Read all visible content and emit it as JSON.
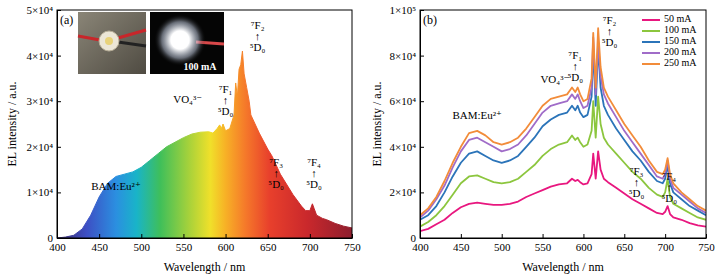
{
  "chart_data": [
    {
      "type": "area",
      "panel_label": "(a)",
      "inset_label": "100 mA",
      "x_label": "Wavelength / nm",
      "y_label": "EL intensity / a.u.",
      "xlim": [
        400,
        750
      ],
      "ylim": [
        0,
        50000
      ],
      "xticks": [
        400,
        450,
        500,
        550,
        600,
        650,
        700,
        750
      ],
      "yticks": [
        0,
        {
          "value": 10000,
          "label": "1×10⁴"
        },
        {
          "value": 20000,
          "label": "2×10⁴"
        },
        {
          "value": 30000,
          "label": "3×10⁴"
        },
        {
          "value": 40000,
          "label": "4×10⁴"
        },
        {
          "value": 50000,
          "label": "5×10⁴"
        }
      ],
      "x": [
        400,
        410,
        420,
        430,
        440,
        450,
        460,
        470,
        480,
        490,
        500,
        510,
        520,
        530,
        540,
        550,
        560,
        570,
        580,
        585,
        590,
        593,
        595,
        597,
        600,
        605,
        610,
        612,
        614,
        616,
        618,
        620,
        622,
        625,
        628,
        630,
        635,
        640,
        650,
        655,
        660,
        665,
        670,
        680,
        690,
        695,
        700,
        703,
        705,
        708,
        715,
        720,
        730,
        740,
        750
      ],
      "values": [
        0,
        200,
        600,
        2000,
        5000,
        9000,
        12000,
        13500,
        14000,
        14500,
        15500,
        17000,
        18500,
        20000,
        21000,
        22000,
        22800,
        23200,
        23300,
        23000,
        24000,
        24800,
        24000,
        25000,
        23500,
        24000,
        27000,
        34000,
        31000,
        37000,
        38000,
        41000,
        36000,
        33000,
        30000,
        27000,
        25000,
        23000,
        19500,
        18000,
        16000,
        14000,
        12500,
        9500,
        7000,
        6000,
        6000,
        7500,
        6500,
        5000,
        4300,
        4000,
        3200,
        2600,
        2200
      ],
      "annotations": [
        {
          "text": [
            "BAM:Eu²⁺"
          ],
          "x": 470,
          "y": 10500
        },
        {
          "text": [
            "VO₄³⁻"
          ],
          "x": 555,
          "y": 29500
        },
        {
          "text": [
            "⁷F₁",
            "↑",
            "⁵D₀"
          ],
          "x": 600,
          "y": 27000
        },
        {
          "text": [
            "⁷F₂",
            "↑",
            "⁵D₀"
          ],
          "x": 638,
          "y": 41000
        },
        {
          "text": [
            "⁷F₃",
            "↑",
            "⁵D₀"
          ],
          "x": 660,
          "y": 11000
        },
        {
          "text": [
            "⁷F₄",
            "↑",
            "⁵D₀"
          ],
          "x": 705,
          "y": 11000
        }
      ]
    },
    {
      "type": "line",
      "panel_label": "(b)",
      "x_label": "Wavelength / nm",
      "y_label": "EL intensity / a.u.",
      "legend": "upper right",
      "xlim": [
        400,
        750
      ],
      "ylim": [
        0,
        100000
      ],
      "xticks": [
        400,
        450,
        500,
        550,
        600,
        650,
        700,
        750
      ],
      "yticks": [
        0,
        {
          "value": 20000,
          "label": "2×10⁴"
        },
        {
          "value": 40000,
          "label": "4×10⁴"
        },
        {
          "value": 60000,
          "label": "6×10⁴"
        },
        {
          "value": 80000,
          "label": "8×10⁴"
        },
        {
          "value": 100000,
          "label": "1×10⁵"
        }
      ],
      "x": [
        400,
        410,
        420,
        430,
        440,
        450,
        460,
        470,
        480,
        490,
        500,
        510,
        520,
        530,
        540,
        550,
        560,
        570,
        580,
        586,
        590,
        593,
        596,
        600,
        605,
        610,
        612,
        615,
        618,
        621,
        625,
        630,
        640,
        650,
        660,
        670,
        680,
        690,
        697,
        700,
        703,
        706,
        710,
        720,
        730,
        740,
        750
      ],
      "series": [
        {
          "name": "50 mA",
          "color": "#e8177f",
          "values": [
            3000,
            4000,
            6000,
            8000,
            11000,
            13500,
            15000,
            15500,
            15000,
            14500,
            14500,
            15000,
            16000,
            18000,
            19500,
            21000,
            22500,
            23500,
            24000,
            26000,
            25000,
            25500,
            24500,
            23500,
            24000,
            28000,
            37000,
            26000,
            38000,
            30000,
            26000,
            24500,
            22000,
            19500,
            17000,
            15000,
            13000,
            11000,
            10500,
            11500,
            14000,
            10500,
            9000,
            8000,
            6500,
            5500,
            5000
          ]
        },
        {
          "name": "100 mA",
          "color": "#8cc63e",
          "values": [
            5000,
            7000,
            10000,
            14000,
            19000,
            24000,
            27000,
            27500,
            26000,
            24500,
            24000,
            24500,
            26000,
            29000,
            32000,
            36000,
            39000,
            41000,
            42000,
            45000,
            43000,
            44000,
            42000,
            40000,
            41000,
            47000,
            60000,
            44000,
            62000,
            50000,
            44000,
            41000,
            37000,
            33000,
            29000,
            26000,
            22000,
            19000,
            18000,
            20000,
            26000,
            18000,
            15000,
            13000,
            11000,
            9000,
            8000
          ]
        },
        {
          "name": "150 mA",
          "color": "#2b74b9",
          "values": [
            8000,
            10000,
            14000,
            20000,
            27000,
            33000,
            37000,
            38000,
            36000,
            34000,
            33000,
            34000,
            36000,
            40000,
            44000,
            49000,
            52000,
            54000,
            55000,
            58000,
            56000,
            58000,
            55000,
            53000,
            54000,
            62000,
            83000,
            58000,
            84000,
            66000,
            58000,
            54000,
            48000,
            43000,
            38000,
            34000,
            29000,
            25000,
            24000,
            26000,
            32000,
            24000,
            20000,
            17000,
            14000,
            12000,
            10000
          ]
        },
        {
          "name": "200 mA",
          "color": "#a06cc8",
          "values": [
            9000,
            12000,
            17000,
            23000,
            31000,
            38000,
            43000,
            44000,
            42000,
            40000,
            38000,
            39000,
            41000,
            45000,
            50000,
            55000,
            58000,
            59000,
            60000,
            63000,
            61000,
            63000,
            60000,
            57000,
            58000,
            66000,
            88000,
            63000,
            86000,
            71000,
            63000,
            59000,
            53000,
            47000,
            42000,
            37000,
            32000,
            27000,
            26000,
            28000,
            34000,
            26000,
            22000,
            19000,
            16000,
            13000,
            11000
          ]
        },
        {
          "name": "250 mA",
          "color": "#f28c3a",
          "values": [
            10000,
            13000,
            18000,
            25000,
            33000,
            40000,
            46000,
            47000,
            45000,
            42000,
            41000,
            42000,
            44000,
            48000,
            53000,
            58000,
            61000,
            62000,
            63000,
            66000,
            64000,
            66000,
            63000,
            60000,
            61000,
            70000,
            90000,
            66000,
            92000,
            75000,
            66000,
            62000,
            56000,
            50000,
            45000,
            40000,
            34000,
            29000,
            28000,
            30000,
            35000,
            28000,
            24000,
            20000,
            17000,
            14000,
            12000
          ]
        }
      ],
      "annotations": [
        {
          "text": [
            "BAM:Eu²⁺"
          ],
          "x": 470,
          "y": 52000
        },
        {
          "text": [
            "VO₄³⁻"
          ],
          "x": 565,
          "y": 68000
        },
        {
          "text": [
            "⁷F₁",
            "↑",
            "⁵D₀"
          ],
          "x": 590,
          "y": 69000
        },
        {
          "text": [
            "⁷F₂",
            "↑",
            "⁵D₀"
          ],
          "x": 632,
          "y": 84000
        },
        {
          "text": [
            "⁷F₃",
            "↑",
            "⁵D₀"
          ],
          "x": 665,
          "y": 18000
        },
        {
          "text": [
            "⁷F₄",
            "↑",
            "⁵D₀"
          ],
          "x": 705,
          "y": 16000
        }
      ]
    }
  ]
}
